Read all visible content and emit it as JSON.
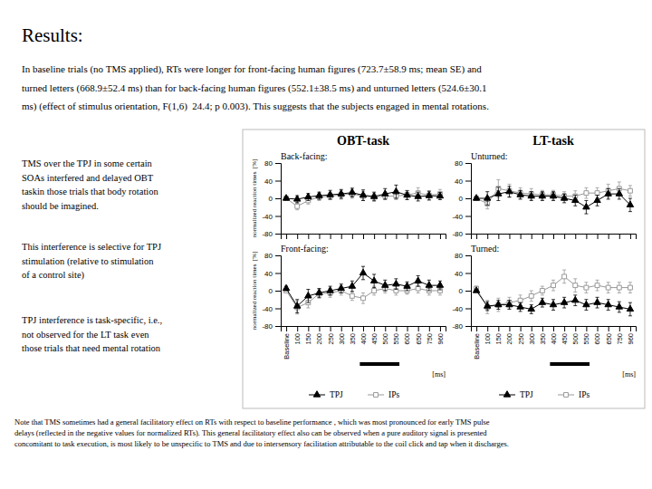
{
  "title": "Results:",
  "paragraphs": [
    "In baseline trials (no TMS applied), RTs were longer for front-facing human figures (723.7±58.9 ms; mean SE) and",
    "turned letters (668.9±52.4 ms) than for back-facing human figures (552.1±38.5 ms) and unturned letters (524.6±30.1",
    "ms) (effect of stimulus orientation, F(1,6)  24.4; p 0.003). This suggests that the subjects engaged in mental rotations."
  ],
  "side_notes": [
    [
      "TMS over the TPJ in some certain",
      "SOAs interfered and delayed OBT",
      "taskin those trials that body rotation",
      "should be imagined."
    ],
    [
      "This interference is selective for TPJ",
      "stimulation (relative to stimulation",
      "of a control site)"
    ],
    [
      "TPJ interference is task-specific, i.e.,",
      "not observed for the LT task even",
      "those trials that need mental rotation"
    ]
  ],
  "note": [
    "Note that TMS sometimes had a general facilitatory effect on RTs with respect to baseline performance , which was most pronounced for early TMS pulse",
    "delays (reflected in the negative values for normalized RTs). This general facilitatory effect also can be observed when a pure auditory signal is presented",
    "concomitant to task execution, is most likely to be unspecific to TMS and due to intersensory facilitation attributable to the coil click and tap when it discharges."
  ],
  "column_titles": [
    "OBT-task",
    "LT-task"
  ],
  "chart_data": [
    {
      "type": "line",
      "title": "Back-facing:",
      "ylabel": "normalized reaction times  [%]",
      "tick_labels": "y",
      "categories": [
        "Baseline",
        "100",
        "150",
        "200",
        "250",
        "300",
        "350",
        "400",
        "450",
        "500",
        "550",
        "600",
        "650",
        "750",
        "960"
      ],
      "ylim": [
        -80,
        80
      ],
      "yticks": [
        -80,
        -40,
        0,
        40,
        80
      ],
      "series": [
        {
          "name": "TPJ",
          "color": "black",
          "marker": "triangle",
          "values": [
            0,
            -2,
            3,
            6,
            8,
            10,
            13,
            7,
            4,
            10,
            15,
            7,
            4,
            6,
            5
          ],
          "errors": [
            2,
            8,
            8,
            8,
            10,
            10,
            10,
            12,
            10,
            12,
            15,
            10,
            10,
            10,
            8
          ]
        },
        {
          "name": "IPs",
          "color": "#999999",
          "marker": "open-square",
          "values": [
            0,
            -18,
            -5,
            3,
            5,
            8,
            10,
            5,
            3,
            5,
            5,
            8,
            12,
            7,
            10
          ],
          "errors": [
            2,
            8,
            8,
            8,
            8,
            10,
            10,
            10,
            8,
            8,
            8,
            10,
            12,
            10,
            10
          ]
        }
      ]
    },
    {
      "type": "line",
      "title": "Unturned:",
      "tick_labels": "y",
      "categories": [
        "Baseline",
        "100",
        "150",
        "200",
        "250",
        "300",
        "350",
        "400",
        "450",
        "500",
        "550",
        "600",
        "650",
        "750",
        "960"
      ],
      "ylim": [
        -80,
        80
      ],
      "yticks": [
        -80,
        -40,
        0,
        40,
        80
      ],
      "series": [
        {
          "name": "TPJ",
          "color": "black",
          "marker": "triangle",
          "values": [
            0,
            0,
            10,
            15,
            8,
            5,
            5,
            5,
            0,
            -5,
            -20,
            -5,
            10,
            10,
            -15
          ],
          "errors": [
            2,
            15,
            15,
            12,
            10,
            10,
            10,
            10,
            10,
            12,
            15,
            12,
            12,
            12,
            15
          ]
        },
        {
          "name": "IPs",
          "color": "#999999",
          "marker": "open-square",
          "values": [
            0,
            -12,
            22,
            17,
            12,
            10,
            8,
            8,
            5,
            5,
            12,
            12,
            17,
            22,
            17
          ],
          "errors": [
            2,
            12,
            20,
            15,
            12,
            12,
            10,
            10,
            10,
            12,
            12,
            12,
            15,
            15,
            12
          ]
        }
      ]
    },
    {
      "type": "line",
      "title": "Front-facing:",
      "ylabel": "normalized reaction times  [%]",
      "xlabel": "[ms]",
      "legend": "bottom",
      "highlight": {
        "from": "400",
        "to": "550"
      },
      "categories": [
        "Baseline",
        "100",
        "150",
        "200",
        "250",
        "300",
        "350",
        "400",
        "450",
        "500",
        "550",
        "600",
        "650",
        "750",
        "960"
      ],
      "ylim": [
        -80,
        80
      ],
      "yticks": [
        -80,
        -40,
        0,
        40,
        80
      ],
      "series": [
        {
          "name": "TPJ",
          "color": "black",
          "marker": "triangle",
          "values": [
            5,
            -35,
            -12,
            -5,
            0,
            5,
            10,
            40,
            22,
            12,
            15,
            10,
            22,
            12,
            12
          ],
          "errors": [
            5,
            15,
            15,
            10,
            10,
            10,
            12,
            15,
            15,
            12,
            12,
            10,
            12,
            12,
            10
          ]
        },
        {
          "name": "IPs",
          "color": "#999999",
          "marker": "open-square",
          "values": [
            0,
            -38,
            -27,
            -7,
            -5,
            0,
            -12,
            -17,
            0,
            5,
            0,
            0,
            5,
            0,
            0
          ],
          "errors": [
            5,
            15,
            12,
            10,
            10,
            10,
            10,
            12,
            10,
            10,
            10,
            8,
            10,
            10,
            10
          ]
        }
      ]
    },
    {
      "type": "line",
      "title": "Turned:",
      "xlabel": "[ms]",
      "legend": "bottom",
      "highlight": {
        "from": "400",
        "to": "550"
      },
      "categories": [
        "Baseline",
        "100",
        "150",
        "200",
        "250",
        "300",
        "350",
        "400",
        "450",
        "500",
        "550",
        "600",
        "650",
        "750",
        "960"
      ],
      "ylim": [
        -80,
        80
      ],
      "yticks": [
        -80,
        -40,
        0,
        40,
        80
      ],
      "series": [
        {
          "name": "TPJ",
          "color": "black",
          "marker": "triangle",
          "values": [
            0,
            -35,
            -32,
            -32,
            -37,
            -42,
            -27,
            -32,
            -27,
            -22,
            -32,
            -27,
            -32,
            -37,
            -42
          ],
          "errors": [
            2,
            10,
            10,
            10,
            10,
            10,
            10,
            12,
            12,
            12,
            12,
            12,
            12,
            12,
            15
          ]
        },
        {
          "name": "IPs",
          "color": "#999999",
          "marker": "open-square",
          "values": [
            5,
            -37,
            -32,
            -27,
            -22,
            -12,
            0,
            12,
            32,
            12,
            7,
            12,
            7,
            7,
            7
          ],
          "errors": [
            5,
            15,
            15,
            12,
            12,
            12,
            10,
            12,
            15,
            15,
            12,
            12,
            12,
            12,
            12
          ]
        }
      ]
    }
  ]
}
